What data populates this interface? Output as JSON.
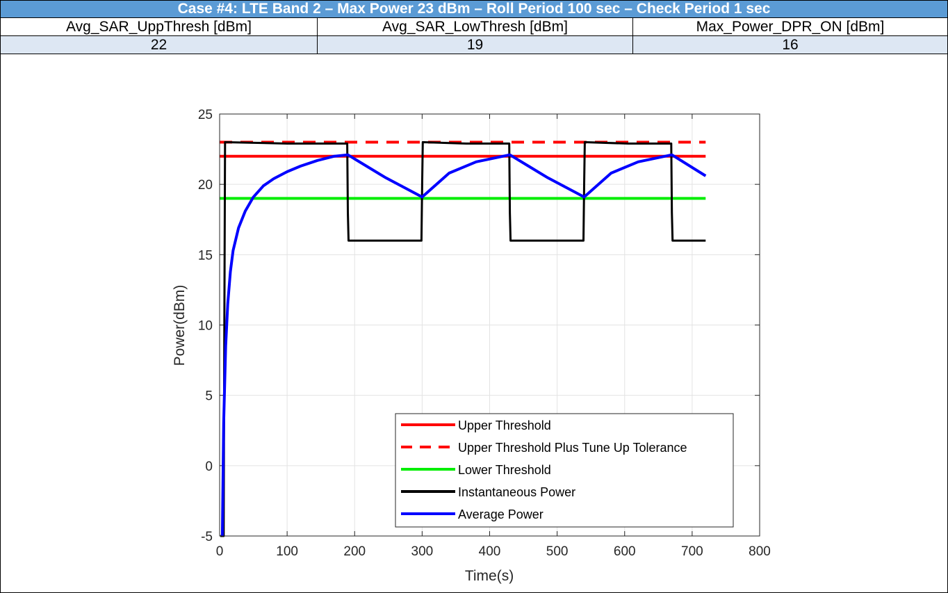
{
  "table": {
    "title": "Case #4: LTE Band 2 – Max Power 23 dBm – Roll Period 100 sec – Check Period 1 sec",
    "headers": [
      "Avg_SAR_UppThresh [dBm]",
      "Avg_SAR_LowThresh [dBm]",
      "Max_Power_DPR_ON [dBm]"
    ],
    "values": [
      "22",
      "19",
      "16"
    ],
    "colors": {
      "title_bg": "#5b9bd5",
      "value_row_bg": "#dde7f3"
    }
  },
  "chart_data": {
    "type": "line",
    "title": "",
    "xlabel": "Time(s)",
    "ylabel": "Power(dBm)",
    "xlim": [
      0,
      800
    ],
    "ylim": [
      -5,
      25
    ],
    "xticks": [
      0,
      100,
      200,
      300,
      400,
      500,
      600,
      700,
      800
    ],
    "yticks": [
      -5,
      0,
      5,
      10,
      15,
      20,
      25
    ],
    "grid": true,
    "legend_position": "lower-right",
    "series": [
      {
        "name": "Upper Threshold",
        "color": "#ff0000",
        "style": "solid",
        "x": [
          0,
          720
        ],
        "y": [
          22,
          22
        ]
      },
      {
        "name": "Upper Threshold Plus Tune Up Tolerance",
        "color": "#ff0000",
        "style": "dashed",
        "x": [
          0,
          720
        ],
        "y": [
          23,
          23
        ]
      },
      {
        "name": "Lower Threshold",
        "color": "#00ee00",
        "style": "solid",
        "x": [
          0,
          720
        ],
        "y": [
          19,
          19
        ]
      },
      {
        "name": "Instantaneous Power",
        "color": "#000000",
        "style": "solid",
        "x": [
          1,
          6,
          7,
          8,
          100,
          189,
          190,
          191,
          250,
          299,
          300,
          301,
          365,
          429,
          430,
          431,
          485,
          539,
          540,
          541,
          605,
          669,
          670,
          671,
          720
        ],
        "y": [
          -5,
          -5,
          10,
          23,
          22.9,
          22.9,
          18,
          16,
          16,
          16,
          20,
          23,
          22.9,
          22.9,
          18,
          16,
          16,
          16,
          20,
          23,
          22.9,
          22.9,
          18,
          16,
          16
        ]
      },
      {
        "name": "Average Power",
        "color": "#0000ff",
        "style": "solid",
        "x": [
          4,
          6,
          9,
          12,
          16,
          20,
          28,
          38,
          50,
          65,
          80,
          100,
          120,
          145,
          170,
          190,
          245,
          300,
          340,
          380,
          430,
          485,
          540,
          580,
          620,
          670,
          720
        ],
        "y": [
          -5,
          3,
          8.5,
          11.5,
          13.8,
          15.3,
          16.9,
          18.1,
          19.1,
          19.9,
          20.4,
          20.9,
          21.3,
          21.7,
          22.0,
          22.1,
          20.5,
          19.1,
          20.8,
          21.6,
          22.1,
          20.5,
          19.1,
          20.8,
          21.6,
          22.1,
          20.6
        ]
      }
    ]
  }
}
